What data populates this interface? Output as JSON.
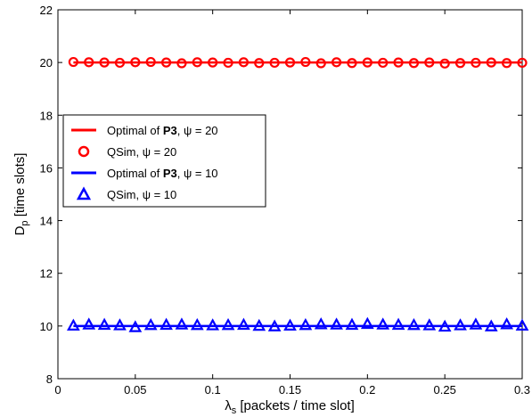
{
  "chart_data": {
    "type": "line",
    "xlabel": {
      "symbol": "λ",
      "sub": "s",
      "rest": " [packets / time slot]"
    },
    "ylabel": {
      "symbol": "D",
      "sub": "p",
      "rest": " [time slots]"
    },
    "xlim": [
      0,
      0.3
    ],
    "ylim": [
      8,
      22
    ],
    "xticks": [
      0,
      0.05,
      0.1,
      0.15,
      0.2,
      0.25,
      0.3
    ],
    "xtick_labels": [
      "0",
      "0.05",
      "0.1",
      "0.15",
      "0.2",
      "0.25",
      "0.3"
    ],
    "yticks": [
      8,
      10,
      12,
      14,
      16,
      18,
      20,
      22
    ],
    "ytick_labels": [
      "8",
      "10",
      "12",
      "14",
      "16",
      "18",
      "20",
      "22"
    ],
    "grid": false,
    "legend_position": "center-left",
    "x": [
      0.01,
      0.02,
      0.03,
      0.04,
      0.05,
      0.06,
      0.07,
      0.08,
      0.09,
      0.1,
      0.11,
      0.12,
      0.13,
      0.14,
      0.15,
      0.16,
      0.17,
      0.18,
      0.19,
      0.2,
      0.21,
      0.22,
      0.23,
      0.24,
      0.25,
      0.26,
      0.27,
      0.28,
      0.29,
      0.3
    ],
    "series": [
      {
        "name_prefix": "Optimal of ",
        "name_bold": "P3",
        "name_suffix": ", ψ = 20",
        "kind": "line",
        "color": "#ff0000",
        "values": [
          20,
          20,
          20,
          20,
          20,
          20,
          20,
          20,
          20,
          20,
          20,
          20,
          20,
          20,
          20,
          20,
          20,
          20,
          20,
          20,
          20,
          20,
          20,
          20,
          20,
          20,
          20,
          20,
          20,
          20
        ]
      },
      {
        "name_prefix": "QSim, ψ = 20",
        "name_bold": "",
        "name_suffix": "",
        "kind": "marker",
        "marker": "circle",
        "color": "#ff0000",
        "values": [
          20.02,
          20.01,
          20.0,
          19.99,
          20.01,
          20.02,
          20.0,
          19.97,
          20.01,
          20.0,
          19.99,
          20.01,
          19.98,
          19.99,
          20.0,
          20.02,
          19.97,
          20.01,
          19.98,
          20.0,
          19.99,
          20.0,
          19.98,
          20.0,
          19.96,
          19.98,
          19.99,
          20.0,
          19.98,
          19.99
        ]
      },
      {
        "name_prefix": "Optimal of ",
        "name_bold": "P3",
        "name_suffix": ", ψ = 10",
        "kind": "line",
        "color": "#0000ff",
        "values": [
          10,
          10,
          10,
          10,
          10,
          10,
          10,
          10,
          10,
          10,
          10,
          10,
          10,
          10,
          10,
          10,
          10,
          10,
          10,
          10,
          10,
          10,
          10,
          10,
          10,
          10,
          10,
          10,
          10,
          10
        ]
      },
      {
        "name_prefix": "QSim, ψ = 10",
        "name_bold": "",
        "name_suffix": "",
        "kind": "marker",
        "marker": "triangle",
        "color": "#0000ff",
        "values": [
          10.0,
          10.04,
          10.03,
          10.01,
          9.94,
          10.02,
          10.03,
          10.04,
          10.02,
          10.01,
          10.02,
          10.03,
          9.99,
          9.97,
          10.0,
          10.02,
          10.05,
          10.04,
          10.03,
          10.06,
          10.04,
          10.03,
          10.02,
          10.01,
          9.96,
          10.01,
          10.04,
          9.97,
          10.05,
          10.0
        ]
      }
    ]
  }
}
